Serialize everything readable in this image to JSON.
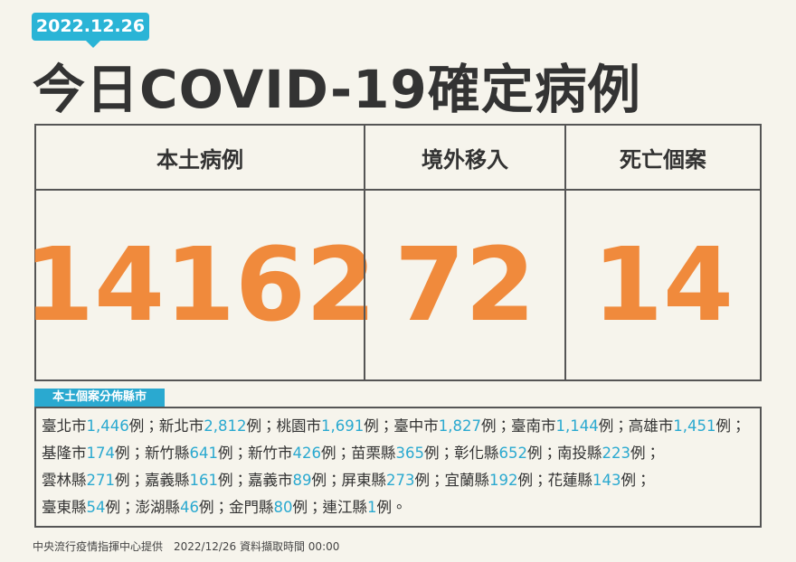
{
  "header": {
    "date": "2022.12.26",
    "title": "今日COVID-19確定病例"
  },
  "summary": [
    {
      "label": "本土病例",
      "value": "14162"
    },
    {
      "label": "境外移入",
      "value": "72"
    },
    {
      "label": "死亡個案",
      "value": "14"
    }
  ],
  "distribution": {
    "title": "本土個案分佈縣市",
    "rows": [
      [
        {
          "name": "臺北市",
          "count": "1,446",
          "suffix": "例；"
        },
        {
          "name": "新北市",
          "count": "2,812",
          "suffix": "例；"
        },
        {
          "name": "桃園市",
          "count": "1,691",
          "suffix": "例；"
        },
        {
          "name": "臺中市",
          "count": "1,827",
          "suffix": "例；"
        },
        {
          "name": "臺南市",
          "count": "1,144",
          "suffix": "例；"
        },
        {
          "name": "高雄市",
          "count": "1,451",
          "suffix": "例；"
        }
      ],
      [
        {
          "name": "基隆市",
          "count": "174",
          "suffix": "例；"
        },
        {
          "name": "新竹縣",
          "count": "641",
          "suffix": "例；"
        },
        {
          "name": "新竹市",
          "count": "426",
          "suffix": "例；"
        },
        {
          "name": "苗栗縣",
          "count": "365",
          "suffix": "例；"
        },
        {
          "name": "彰化縣",
          "count": "652",
          "suffix": "例；"
        },
        {
          "name": "南投縣",
          "count": "223",
          "suffix": "例；"
        }
      ],
      [
        {
          "name": "雲林縣",
          "count": "271",
          "suffix": "例；"
        },
        {
          "name": "嘉義縣",
          "count": "161",
          "suffix": "例；"
        },
        {
          "name": "嘉義市",
          "count": "89",
          "suffix": "例；"
        },
        {
          "name": "屏東縣",
          "count": "273",
          "suffix": "例；"
        },
        {
          "name": "宜蘭縣",
          "count": "192",
          "suffix": "例；"
        },
        {
          "name": "花蓮縣",
          "count": "143",
          "suffix": "例；"
        }
      ],
      [
        {
          "name": "臺東縣",
          "count": "54",
          "suffix": "例；"
        },
        {
          "name": "澎湖縣",
          "count": "46",
          "suffix": "例；"
        },
        {
          "name": "金門縣",
          "count": "80",
          "suffix": "例；"
        },
        {
          "name": "連江縣",
          "count": "1",
          "suffix": "例。"
        }
      ]
    ]
  },
  "footer": "中央流行疫情指揮中心提供　2022/12/26 資料擷取時間 00:00"
}
